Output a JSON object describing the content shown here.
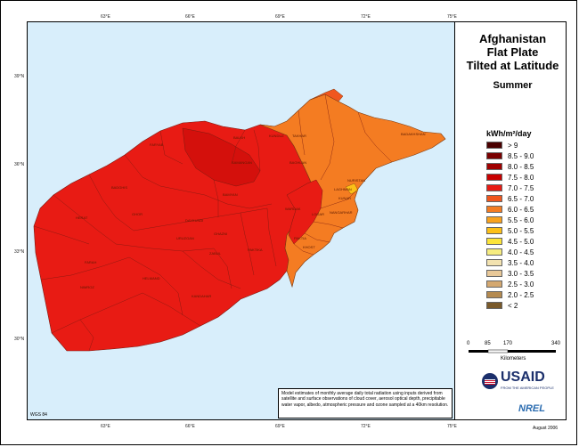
{
  "title_lines": [
    "Afghanistan",
    "Flat Plate",
    "Tilted at Latitude"
  ],
  "season": "Summer",
  "legend": {
    "title": "kWh/m²/day",
    "items": [
      {
        "label": "> 9",
        "color": "#4a0000"
      },
      {
        "label": "8.5 - 9.0",
        "color": "#7a0000"
      },
      {
        "label": "8.0 - 8.5",
        "color": "#a00000"
      },
      {
        "label": "7.5 - 8.0",
        "color": "#c80000"
      },
      {
        "label": "7.0 - 7.5",
        "color": "#e81b14"
      },
      {
        "label": "6.5 - 7.0",
        "color": "#f0561e"
      },
      {
        "label": "6.0 - 6.5",
        "color": "#f47c22"
      },
      {
        "label": "5.5 - 6.0",
        "color": "#f8a21e"
      },
      {
        "label": "5.0 - 5.5",
        "color": "#fcc018"
      },
      {
        "label": "4.5 - 5.0",
        "color": "#fce43a"
      },
      {
        "label": "4.0 - 4.5",
        "color": "#f6ec80"
      },
      {
        "label": "3.5 - 4.0",
        "color": "#f2e2b0"
      },
      {
        "label": "3.0 - 3.5",
        "color": "#e8c898"
      },
      {
        "label": "2.5 - 3.0",
        "color": "#d4a870"
      },
      {
        "label": "2.0 - 2.5",
        "color": "#b48a50"
      },
      {
        "label": "< 2",
        "color": "#7a5a2a"
      }
    ]
  },
  "scale": {
    "labels": [
      "0",
      "85",
      "170",
      "340"
    ],
    "unit": "Kilometers"
  },
  "lon_ticks": [
    "63°E",
    "66°E",
    "69°E",
    "72°E",
    "75°E"
  ],
  "lat_ticks": [
    "39°N",
    "36°N",
    "33°N",
    "30°N"
  ],
  "note": "Model estimates of monthly average daily total radiation using inputs derived from satellite and surface observations of cloud cover, aerosol optical depth, precipitable water vapor, albedo, atmospheric pressure and ozone sampled at a 40km resolution.",
  "datum": "WGS 84",
  "date": "August 2006",
  "usaid": {
    "name": "USAID",
    "tagline": "FROM THE AMERICAN PEOPLE"
  },
  "nrel": "NREL",
  "colors": {
    "map_main": "#e81b14",
    "map_east": "#f47c22",
    "map_dark": "#c80000",
    "ocean": "#d8eefb"
  }
}
